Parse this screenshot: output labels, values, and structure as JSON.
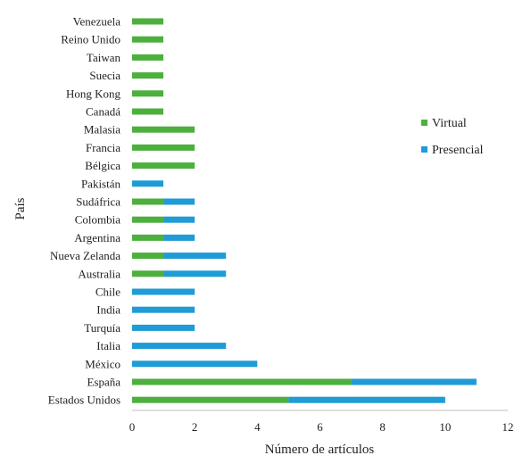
{
  "chart_data": {
    "type": "bar",
    "orientation": "horizontal",
    "stacked": true,
    "title": "",
    "xlabel": "Número de artículos",
    "ylabel": "País",
    "xlim": [
      0,
      12
    ],
    "xticks": [
      0,
      2,
      4,
      6,
      8,
      10,
      12
    ],
    "grid": false,
    "legend_position": "right",
    "categories": [
      "Venezuela",
      "Reino Unido",
      "Taiwan",
      "Suecia",
      "Hong Kong",
      "Canadá",
      "Malasia",
      "Francia",
      "Bélgica",
      "Pakistán",
      "Sudáfrica",
      "Colombia",
      "Argentina",
      "Nueva Zelanda",
      "Australia",
      "Chile",
      "India",
      "Turquía",
      "Italia",
      "México",
      "España",
      "Estados Unidos"
    ],
    "series": [
      {
        "name": "Virtual",
        "color": "#4daf3e",
        "values": [
          1,
          1,
          1,
          1,
          1,
          1,
          2,
          2,
          2,
          0,
          1,
          1,
          1,
          1,
          1,
          0,
          0,
          0,
          0,
          0,
          7,
          5
        ]
      },
      {
        "name": "Presencial",
        "color": "#1f9bd6",
        "values": [
          0,
          0,
          0,
          0,
          0,
          0,
          0,
          0,
          0,
          1,
          1,
          1,
          1,
          2,
          2,
          2,
          2,
          2,
          3,
          4,
          4,
          5
        ]
      }
    ]
  }
}
